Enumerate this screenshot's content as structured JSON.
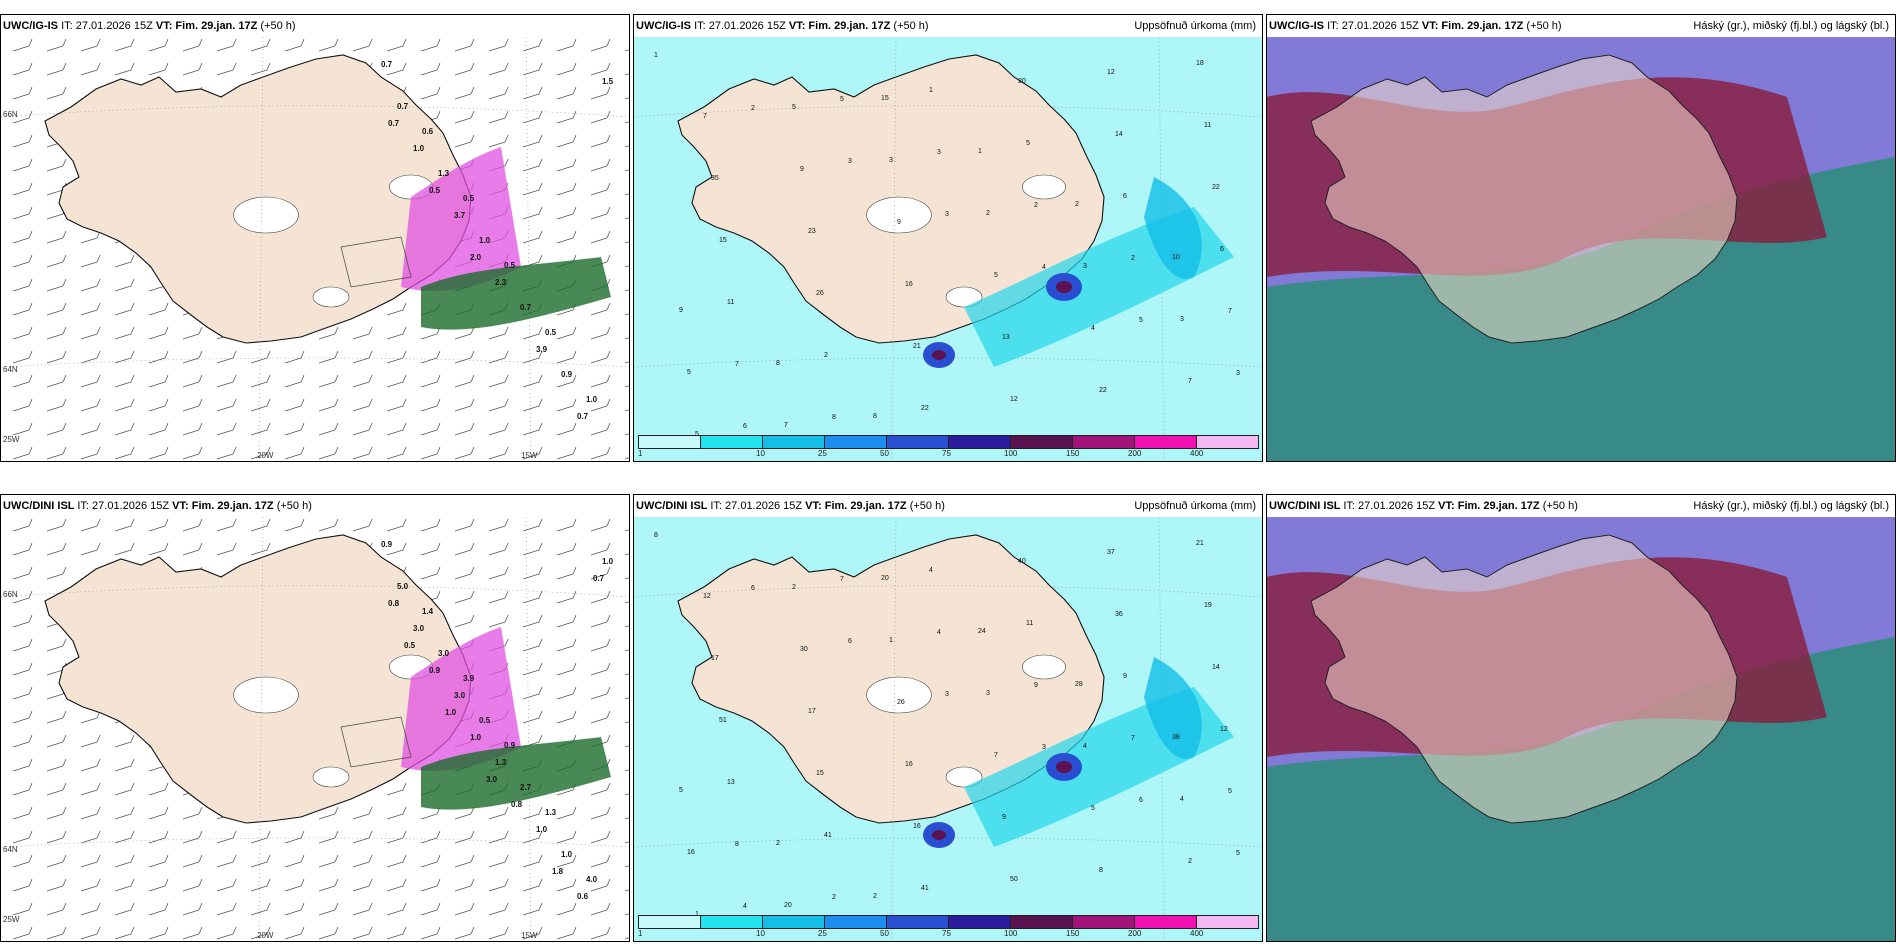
{
  "panels": [
    {
      "model": "UWC/IG-IS",
      "it_label": "IT:",
      "it": "27.01.2026 15Z",
      "vt_label": "VT:",
      "vt": "Fim. 29.jan. 17Z",
      "lead": "(+50 h)",
      "title": ""
    },
    {
      "model": "UWC/IG-IS",
      "it_label": "IT:",
      "it": "27.01.2026 15Z",
      "vt_label": "VT:",
      "vt": "Fim. 29.jan. 17Z",
      "lead": "(+50 h)",
      "title": "Uppsöfnuð úrkoma (mm)"
    },
    {
      "model": "UWC/IG-IS",
      "it_label": "IT:",
      "it": "27.01.2026 15Z",
      "vt_label": "VT:",
      "vt": "Fim. 29.jan. 17Z",
      "lead": "(+50 h)",
      "title": "Háský (gr.), miðský (fj.bl.) og lágský (bl.)"
    },
    {
      "model": "UWC/DINI ISL",
      "it_label": "IT:",
      "it": "27.01.2026 15Z",
      "vt_label": "VT:",
      "vt": "Fim. 29.jan. 17Z",
      "lead": "(+50 h)",
      "title": ""
    },
    {
      "model": "UWC/DINI ISL",
      "it_label": "IT:",
      "it": "27.01.2026 15Z",
      "vt_label": "VT:",
      "vt": "Fim. 29.jan. 17Z",
      "lead": "(+50 h)",
      "title": "Uppsöfnuð úrkoma (mm)"
    },
    {
      "model": "UWC/DINI ISL",
      "it_label": "IT:",
      "it": "27.01.2026 15Z",
      "vt_label": "VT:",
      "vt": "Fim. 29.jan. 17Z",
      "lead": "(+50 h)",
      "title": "Háský (gr.), miðský (fj.bl.) og lágský (bl.)"
    }
  ],
  "axes": {
    "lon": [
      "20W",
      "15W"
    ],
    "lat": [
      "66N",
      "64N"
    ],
    "lon_left": "25W"
  },
  "colorbar": {
    "ticks": [
      "1",
      "10",
      "25",
      "50",
      "75",
      "100",
      "150",
      "200",
      "400"
    ],
    "colors": [
      "#c8f8f8",
      "#22e4ee",
      "#14bee6",
      "#1c8cee",
      "#2a4ed2",
      "#2a1c9c",
      "#5a1250",
      "#a0147a",
      "#f010b0",
      "#f4b8f0"
    ]
  },
  "precip_labels_top": [
    "1",
    "2",
    "3",
    "3",
    "4",
    "5",
    "3",
    "6",
    "5",
    "3",
    "2",
    "2",
    "7",
    "7",
    "8",
    "1",
    "5",
    "6",
    "6",
    "11",
    "2",
    "22",
    "20",
    "14",
    "22",
    "15",
    "26",
    "21",
    "12",
    "12",
    "11",
    "35",
    "23",
    "16",
    "13",
    "22",
    "18",
    "7",
    "9",
    "9",
    "5",
    "4",
    "7",
    "5",
    "5",
    "3",
    "2",
    "3",
    "3",
    "5",
    "7",
    "15",
    "1",
    "2",
    "10",
    "9",
    "8",
    "8"
  ],
  "precip_labels_bottom": [
    "8",
    "6",
    "6",
    "3",
    "3",
    "6",
    "5",
    "4",
    "7",
    "4",
    "9",
    "7",
    "5",
    "8",
    "2",
    "4",
    "11",
    "9",
    "12",
    "13",
    "41",
    "41",
    "40",
    "36",
    "14",
    "51",
    "15",
    "16",
    "50",
    "37",
    "19",
    "17",
    "17",
    "16",
    "9",
    "8",
    "21",
    "12",
    "30",
    "26",
    "7",
    "5",
    "2",
    "1",
    "2",
    "1",
    "3",
    "4",
    "4",
    "16",
    "20",
    "20",
    "24",
    "28",
    "38",
    "5",
    "2",
    "2"
  ],
  "snow_labels_top": [
    "0.7",
    "0.6",
    "0.5",
    "0.5",
    "0.5",
    "1.0",
    "0.7",
    "1.3",
    "1.0",
    "0.7",
    "0.9",
    "1.5",
    "1.0",
    "3.7",
    "2.3",
    "3.9",
    "0.7",
    "0.7",
    "0.5",
    "2.0"
  ],
  "snow_labels_bottom": [
    "0.9",
    "1.4",
    "3.9",
    "0.9",
    "1.3",
    "4.0",
    "5.0",
    "3.0",
    "0.5",
    "2.7",
    "1.0",
    "1.0",
    "3.0",
    "3.0",
    "1.3",
    "1.0",
    "0.6",
    "0.8",
    "0.9",
    "1.0",
    "0.8",
    "1.8",
    "0.7",
    "0.5",
    "1.0",
    "3.0"
  ]
}
